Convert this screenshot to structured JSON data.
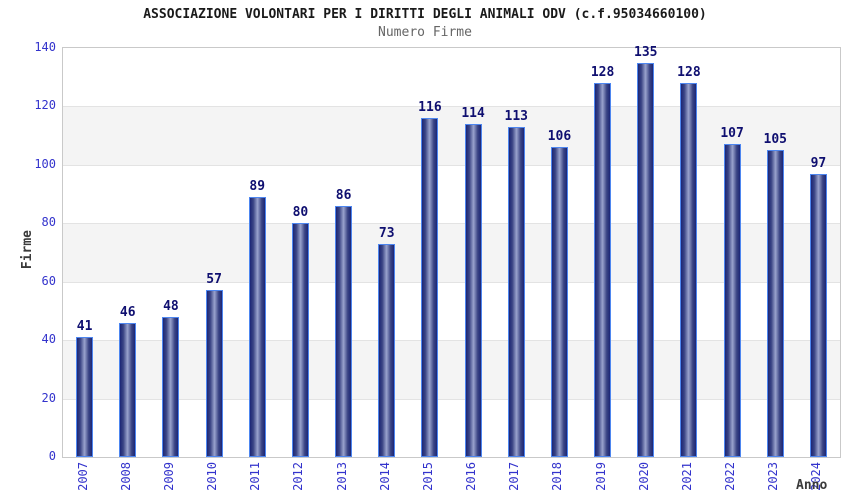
{
  "header": {
    "title": "ASSOCIAZIONE VOLONTARI PER I DIRITTI DEGLI ANIMALI ODV (c.f.95034660100)",
    "subtitle": "Numero Firme"
  },
  "chart_data": {
    "type": "bar",
    "title": "ASSOCIAZIONE VOLONTARI PER I DIRITTI DEGLI ANIMALI ODV (c.f.95034660100)",
    "subtitle": "Numero Firme",
    "categories": [
      "2007",
      "2008",
      "2009",
      "2010",
      "2011",
      "2012",
      "2013",
      "2014",
      "2015",
      "2016",
      "2017",
      "2018",
      "2019",
      "2020",
      "2021",
      "2022",
      "2023",
      "2024"
    ],
    "values": [
      41,
      46,
      48,
      57,
      89,
      80,
      86,
      73,
      116,
      114,
      113,
      106,
      128,
      135,
      128,
      107,
      105,
      97
    ],
    "xlabel": "Anno",
    "ylabel": "Firme",
    "ylim": [
      0,
      140
    ],
    "yticks": [
      0,
      20,
      40,
      60,
      80,
      100,
      120,
      140
    ],
    "grid": "horizontal gridlines every 20 with alternating gray bands",
    "legend_position": "none",
    "bar_value_labels": true
  },
  "colors": {
    "bar_border": "#4d86f0",
    "bar_dark": "#1c2676",
    "bar_highlight": "#9aa3cd",
    "tick_label_blue": "#3333cc",
    "value_label_navy": "#0f0f70",
    "axis_title_gray": "#3a3a3a",
    "subtitle_gray": "#666666",
    "band_gray": "#f4f4f4",
    "gridline": "#e3e3e3",
    "plot_border": "#c9c9c9"
  }
}
